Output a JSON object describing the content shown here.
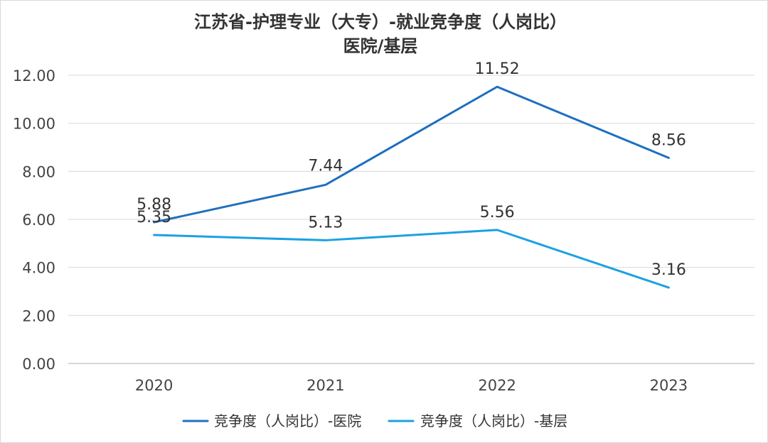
{
  "chart_data": {
    "type": "line",
    "title": "江苏省-护理专业（大专）-就业竞争度（人岗比）",
    "subtitle": "医院/基层",
    "categories": [
      "2020",
      "2021",
      "2022",
      "2023"
    ],
    "ylim": [
      0,
      12
    ],
    "ytick_step": 2,
    "ytick_labels": [
      "0.00",
      "2.00",
      "4.00",
      "6.00",
      "8.00",
      "10.00",
      "12.00"
    ],
    "grid": true,
    "legend_placement": "bottom",
    "series": [
      {
        "name": "竞争度（人岗比）-医院",
        "values": [
          5.88,
          7.44,
          11.52,
          8.56
        ],
        "labels": [
          "5.88",
          "7.44",
          "11.52",
          "8.56"
        ],
        "color": "#1f6fbf"
      },
      {
        "name": "竞争度（人岗比）-基层",
        "values": [
          5.35,
          5.13,
          5.56,
          3.16
        ],
        "labels": [
          "5.35",
          "5.13",
          "5.56",
          "3.16"
        ],
        "color": "#1ba1e2"
      }
    ]
  }
}
